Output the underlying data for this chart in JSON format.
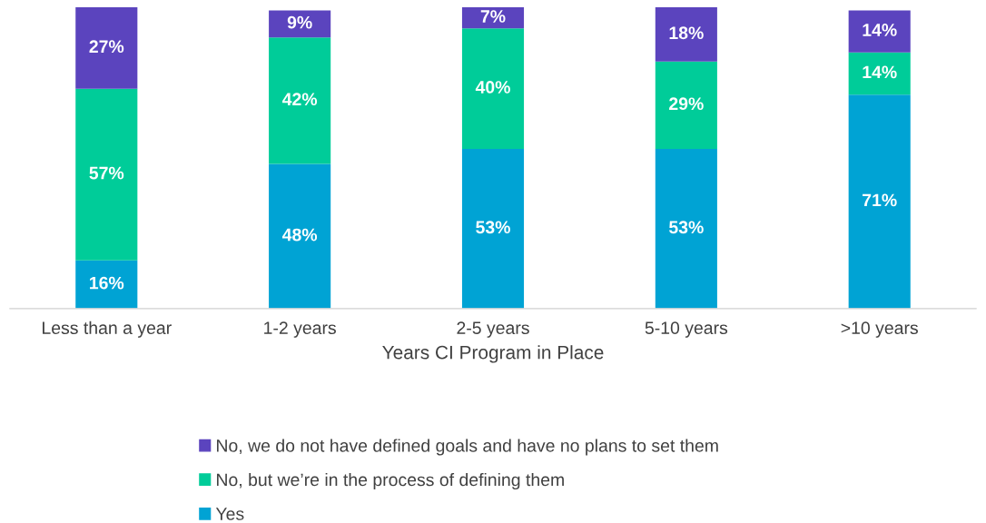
{
  "chart_data": {
    "type": "bar",
    "stacked": true,
    "xlabel": "Years CI Program in Place",
    "categories": [
      "Less than a year",
      "1-2 years",
      "2-5 years",
      "5-10 years",
      ">10 years"
    ],
    "series": [
      {
        "name": "Yes",
        "color": "#00a3d4",
        "values": [
          16,
          48,
          53,
          53,
          71
        ],
        "value_labels": [
          "16%",
          "48%",
          "53%",
          "53%",
          "71%"
        ]
      },
      {
        "name": "No, but we’re in the process of defining them",
        "color": "#00cc99",
        "values": [
          57,
          42,
          40,
          29,
          14
        ],
        "value_labels": [
          "57%",
          "42%",
          "40%",
          "29%",
          "14%"
        ]
      },
      {
        "name": "No, we do not have defined goals and have no plans to set them",
        "color": "#5b44be",
        "values": [
          27,
          9,
          7,
          18,
          14
        ],
        "value_labels": [
          "27%",
          "9%",
          "7%",
          "18%",
          "14%"
        ]
      }
    ],
    "ylim": [
      0,
      100
    ],
    "tick_labels": "x",
    "grid": false,
    "legend": "bottom"
  }
}
